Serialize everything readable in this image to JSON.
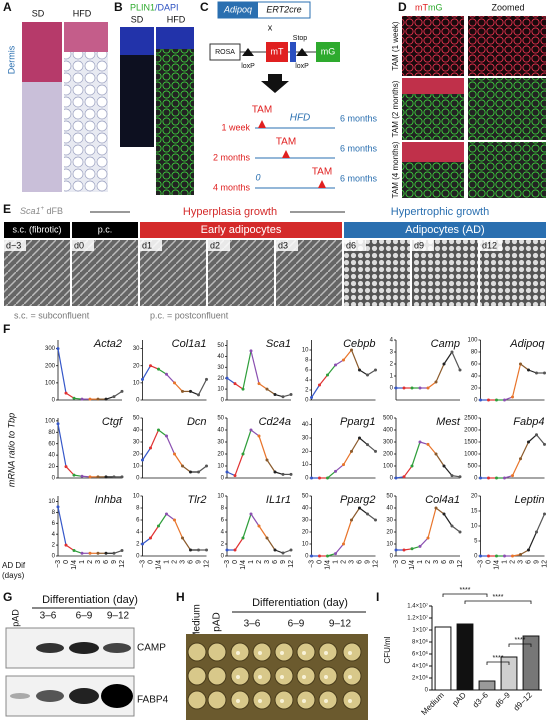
{
  "panel_a": {
    "label": "A",
    "sd": "SD",
    "hfd": "HFD",
    "dermis": "Dermis"
  },
  "panel_b": {
    "label": "B",
    "plin1": "PLIN1",
    "dapi": "/DAPI",
    "sd": "SD",
    "hfd": "HFD"
  },
  "panel_c": {
    "label": "C",
    "adipoq": "Adipoq",
    "ert2cre": "ERT2cre",
    "cross": "x",
    "rosa": "ROSA",
    "loxp1": "loxP",
    "mt": "mT",
    "stop": "Stop",
    "loxp2": "loxP",
    "mg": "mG",
    "timelines": [
      {
        "start": "1 week",
        "tam": "TAM",
        "diet": "HFD",
        "end": "6 months"
      },
      {
        "start": "2 months",
        "tam": "TAM",
        "end": "6 months"
      },
      {
        "start": "4 months",
        "zero": "0",
        "tam": "TAM",
        "end": "6 months"
      }
    ]
  },
  "panel_d": {
    "label": "D",
    "mt": "mT",
    "mg": "mG",
    "zoomed": "Zoomed",
    "rows": [
      "TAM (1 week)",
      "TAM (2 months)",
      "TAM (4 months)"
    ]
  },
  "panel_e": {
    "label": "E",
    "sca1": "Sca1",
    "plus": "+",
    "dfb": " dFB",
    "hyperplasia": "Hyperplasia growth",
    "hypertrophic": "Hypertrophic growth",
    "stages": [
      "s.c. (fibrotic)",
      "p.c.",
      "Early adipocytes",
      "Adipocytes (AD)"
    ],
    "days": [
      "d−3",
      "d0",
      "d1",
      "d2",
      "d3",
      "d6",
      "d9",
      "d12"
    ],
    "note_sc": "s.c. = subconfluent",
    "note_pc": "p.c. = postconfluent"
  },
  "panel_f": {
    "label": "F",
    "ylabel": "mRNA ratio to Tbp",
    "xlabel1": "AD Dif",
    "xlabel2": "(days)",
    "categories": [
      "−3",
      "0",
      "1/4",
      "1",
      "2",
      "3",
      "6",
      "9",
      "12"
    ],
    "segment_colors": [
      "#3557c9",
      "#e03131",
      "#2e9e3a",
      "#8a4fb0",
      "#e8742a",
      "#8b5a2b",
      "#222222",
      "#555555"
    ],
    "charts": [
      {
        "type": "line",
        "gene": "Acta2",
        "ylim": [
          0,
          350
        ],
        "yticks": [
          0,
          100,
          200,
          300
        ],
        "values": [
          300,
          40,
          10,
          5,
          5,
          5,
          5,
          20,
          50
        ]
      },
      {
        "type": "line",
        "gene": "Col1a1",
        "ylim": [
          0,
          35
        ],
        "yticks": [
          0,
          10,
          20,
          30
        ],
        "values": [
          12,
          20,
          18,
          15,
          10,
          5,
          5,
          3,
          12
        ]
      },
      {
        "type": "line",
        "gene": "Sca1",
        "ylim": [
          0,
          55
        ],
        "yticks": [
          0,
          10,
          20,
          30,
          40,
          50
        ],
        "values": [
          20,
          15,
          10,
          45,
          15,
          10,
          5,
          3,
          5
        ]
      },
      {
        "type": "line",
        "gene": "Cebpb",
        "ylim": [
          0,
          12
        ],
        "yticks": [
          0,
          2,
          4,
          6,
          8,
          10
        ],
        "values": [
          0.5,
          3,
          5,
          7,
          8,
          10,
          6,
          5,
          6
        ]
      },
      {
        "type": "line",
        "gene": "Camp",
        "ylim": [
          -1,
          4
        ],
        "yticks": [
          0,
          1,
          2,
          3,
          4
        ],
        "values": [
          0,
          0,
          0,
          0,
          0,
          0.5,
          2,
          3,
          1.5
        ]
      },
      {
        "type": "line",
        "gene": "Adipoq",
        "ylim": [
          0,
          100
        ],
        "yticks": [
          0,
          20,
          40,
          60,
          80,
          100
        ],
        "values": [
          0,
          0,
          0,
          0,
          5,
          60,
          50,
          45,
          45
        ]
      },
      {
        "type": "line",
        "gene": "Ctgf",
        "ylim": [
          0,
          105
        ],
        "yticks": [
          0,
          20,
          40,
          60,
          80,
          100
        ],
        "values": [
          95,
          20,
          5,
          3,
          2,
          2,
          2,
          2,
          2
        ]
      },
      {
        "type": "line",
        "gene": "Dcn",
        "ylim": [
          0,
          50
        ],
        "yticks": [
          0,
          10,
          20,
          30,
          40,
          50
        ],
        "values": [
          15,
          25,
          40,
          35,
          20,
          10,
          5,
          5,
          10
        ]
      },
      {
        "type": "line",
        "gene": "Cd24a",
        "ylim": [
          0,
          50
        ],
        "yticks": [
          0,
          10,
          20,
          30,
          40,
          50
        ],
        "values": [
          5,
          2,
          20,
          40,
          35,
          15,
          5,
          3,
          3
        ]
      },
      {
        "type": "line",
        "gene": "Pparg1",
        "ylim": [
          0,
          45
        ],
        "yticks": [
          0,
          10,
          20,
          30,
          40
        ],
        "values": [
          0,
          0,
          0,
          5,
          10,
          20,
          30,
          25,
          20
        ]
      },
      {
        "type": "line",
        "gene": "Mest",
        "ylim": [
          0,
          500
        ],
        "yticks": [
          0,
          100,
          200,
          300,
          400,
          500
        ],
        "values": [
          0,
          10,
          100,
          300,
          280,
          200,
          100,
          20,
          10
        ]
      },
      {
        "type": "line",
        "gene": "Fabp4",
        "ylim": [
          0,
          2500
        ],
        "yticks": [
          0,
          500,
          1000,
          1500,
          2000,
          2500
        ],
        "values": [
          0,
          0,
          0,
          0,
          100,
          800,
          1500,
          1800,
          1400
        ]
      },
      {
        "type": "line",
        "gene": "Inhba",
        "ylim": [
          0,
          11
        ],
        "yticks": [
          0,
          2,
          4,
          6,
          8,
          10
        ],
        "values": [
          9,
          2,
          1,
          0.5,
          0.5,
          0.5,
          0.5,
          0.5,
          1
        ]
      },
      {
        "type": "line",
        "gene": "Tlr2",
        "ylim": [
          0,
          10
        ],
        "yticks": [
          0,
          2,
          4,
          6,
          8,
          10
        ],
        "values": [
          2,
          3,
          5,
          7,
          6,
          3,
          1,
          1,
          1
        ]
      },
      {
        "type": "line",
        "gene": "IL1r1",
        "ylim": [
          0,
          10
        ],
        "yticks": [
          0,
          2,
          4,
          6,
          8,
          10
        ],
        "values": [
          1,
          1,
          3,
          7,
          5,
          3,
          1,
          0.5,
          1
        ]
      },
      {
        "type": "line",
        "gene": "Pparg2",
        "ylim": [
          0,
          50
        ],
        "yticks": [
          0,
          10,
          20,
          30,
          40,
          50
        ],
        "values": [
          0,
          0,
          0,
          2,
          10,
          30,
          40,
          35,
          30
        ]
      },
      {
        "type": "line",
        "gene": "Col4a1",
        "ylim": [
          0,
          50
        ],
        "yticks": [
          0,
          10,
          20,
          30,
          40,
          50
        ],
        "values": [
          5,
          5,
          6,
          8,
          15,
          40,
          35,
          25,
          20
        ]
      },
      {
        "type": "line",
        "gene": "Leptin",
        "ylim": [
          0,
          20
        ],
        "yticks": [
          0,
          5,
          10,
          15,
          20
        ],
        "values": [
          0,
          0,
          0,
          0,
          0,
          0.5,
          2,
          8,
          14
        ]
      }
    ]
  },
  "panel_g": {
    "label": "G",
    "pad": "pAD",
    "title": "Differentiation (day)",
    "days": [
      "3–6",
      "6–9",
      "9–12"
    ],
    "bands": [
      "CAMP",
      "FABP4"
    ]
  },
  "panel_h": {
    "label": "H",
    "medium": "Medium",
    "pad": "pAD",
    "title": "Differentiation (day)",
    "days": [
      "3–6",
      "6–9",
      "9–12"
    ]
  },
  "chart_data": {
    "type": "bar",
    "label": "I",
    "ylabel": "CFU/ml",
    "categories": [
      "Medium",
      "pAD",
      "d3–6",
      "d6–9",
      "d9–12"
    ],
    "values": [
      10500000,
      11000000,
      1500000,
      5500000,
      9000000
    ],
    "colors": [
      "#ffffff",
      "#111111",
      "#9a9a9a",
      "#cfcfcf",
      "#777777"
    ],
    "ylim": [
      0,
      14000000
    ],
    "yticks": [
      0,
      {
        "value": 2000000,
        "label": "2×10⁶"
      },
      {
        "value": 4000000,
        "label": "4×10⁶"
      },
      {
        "value": 6000000,
        "label": "6×10⁶"
      },
      {
        "value": 8000000,
        "label": "8×10⁶"
      },
      {
        "value": 10000000,
        "label": "1×10⁷"
      },
      {
        "value": 12000000,
        "label": "1.2×10⁷"
      },
      {
        "value": 14000000,
        "label": "1.4×10⁷"
      }
    ],
    "significance": [
      "****",
      "****",
      "****",
      "****"
    ]
  }
}
